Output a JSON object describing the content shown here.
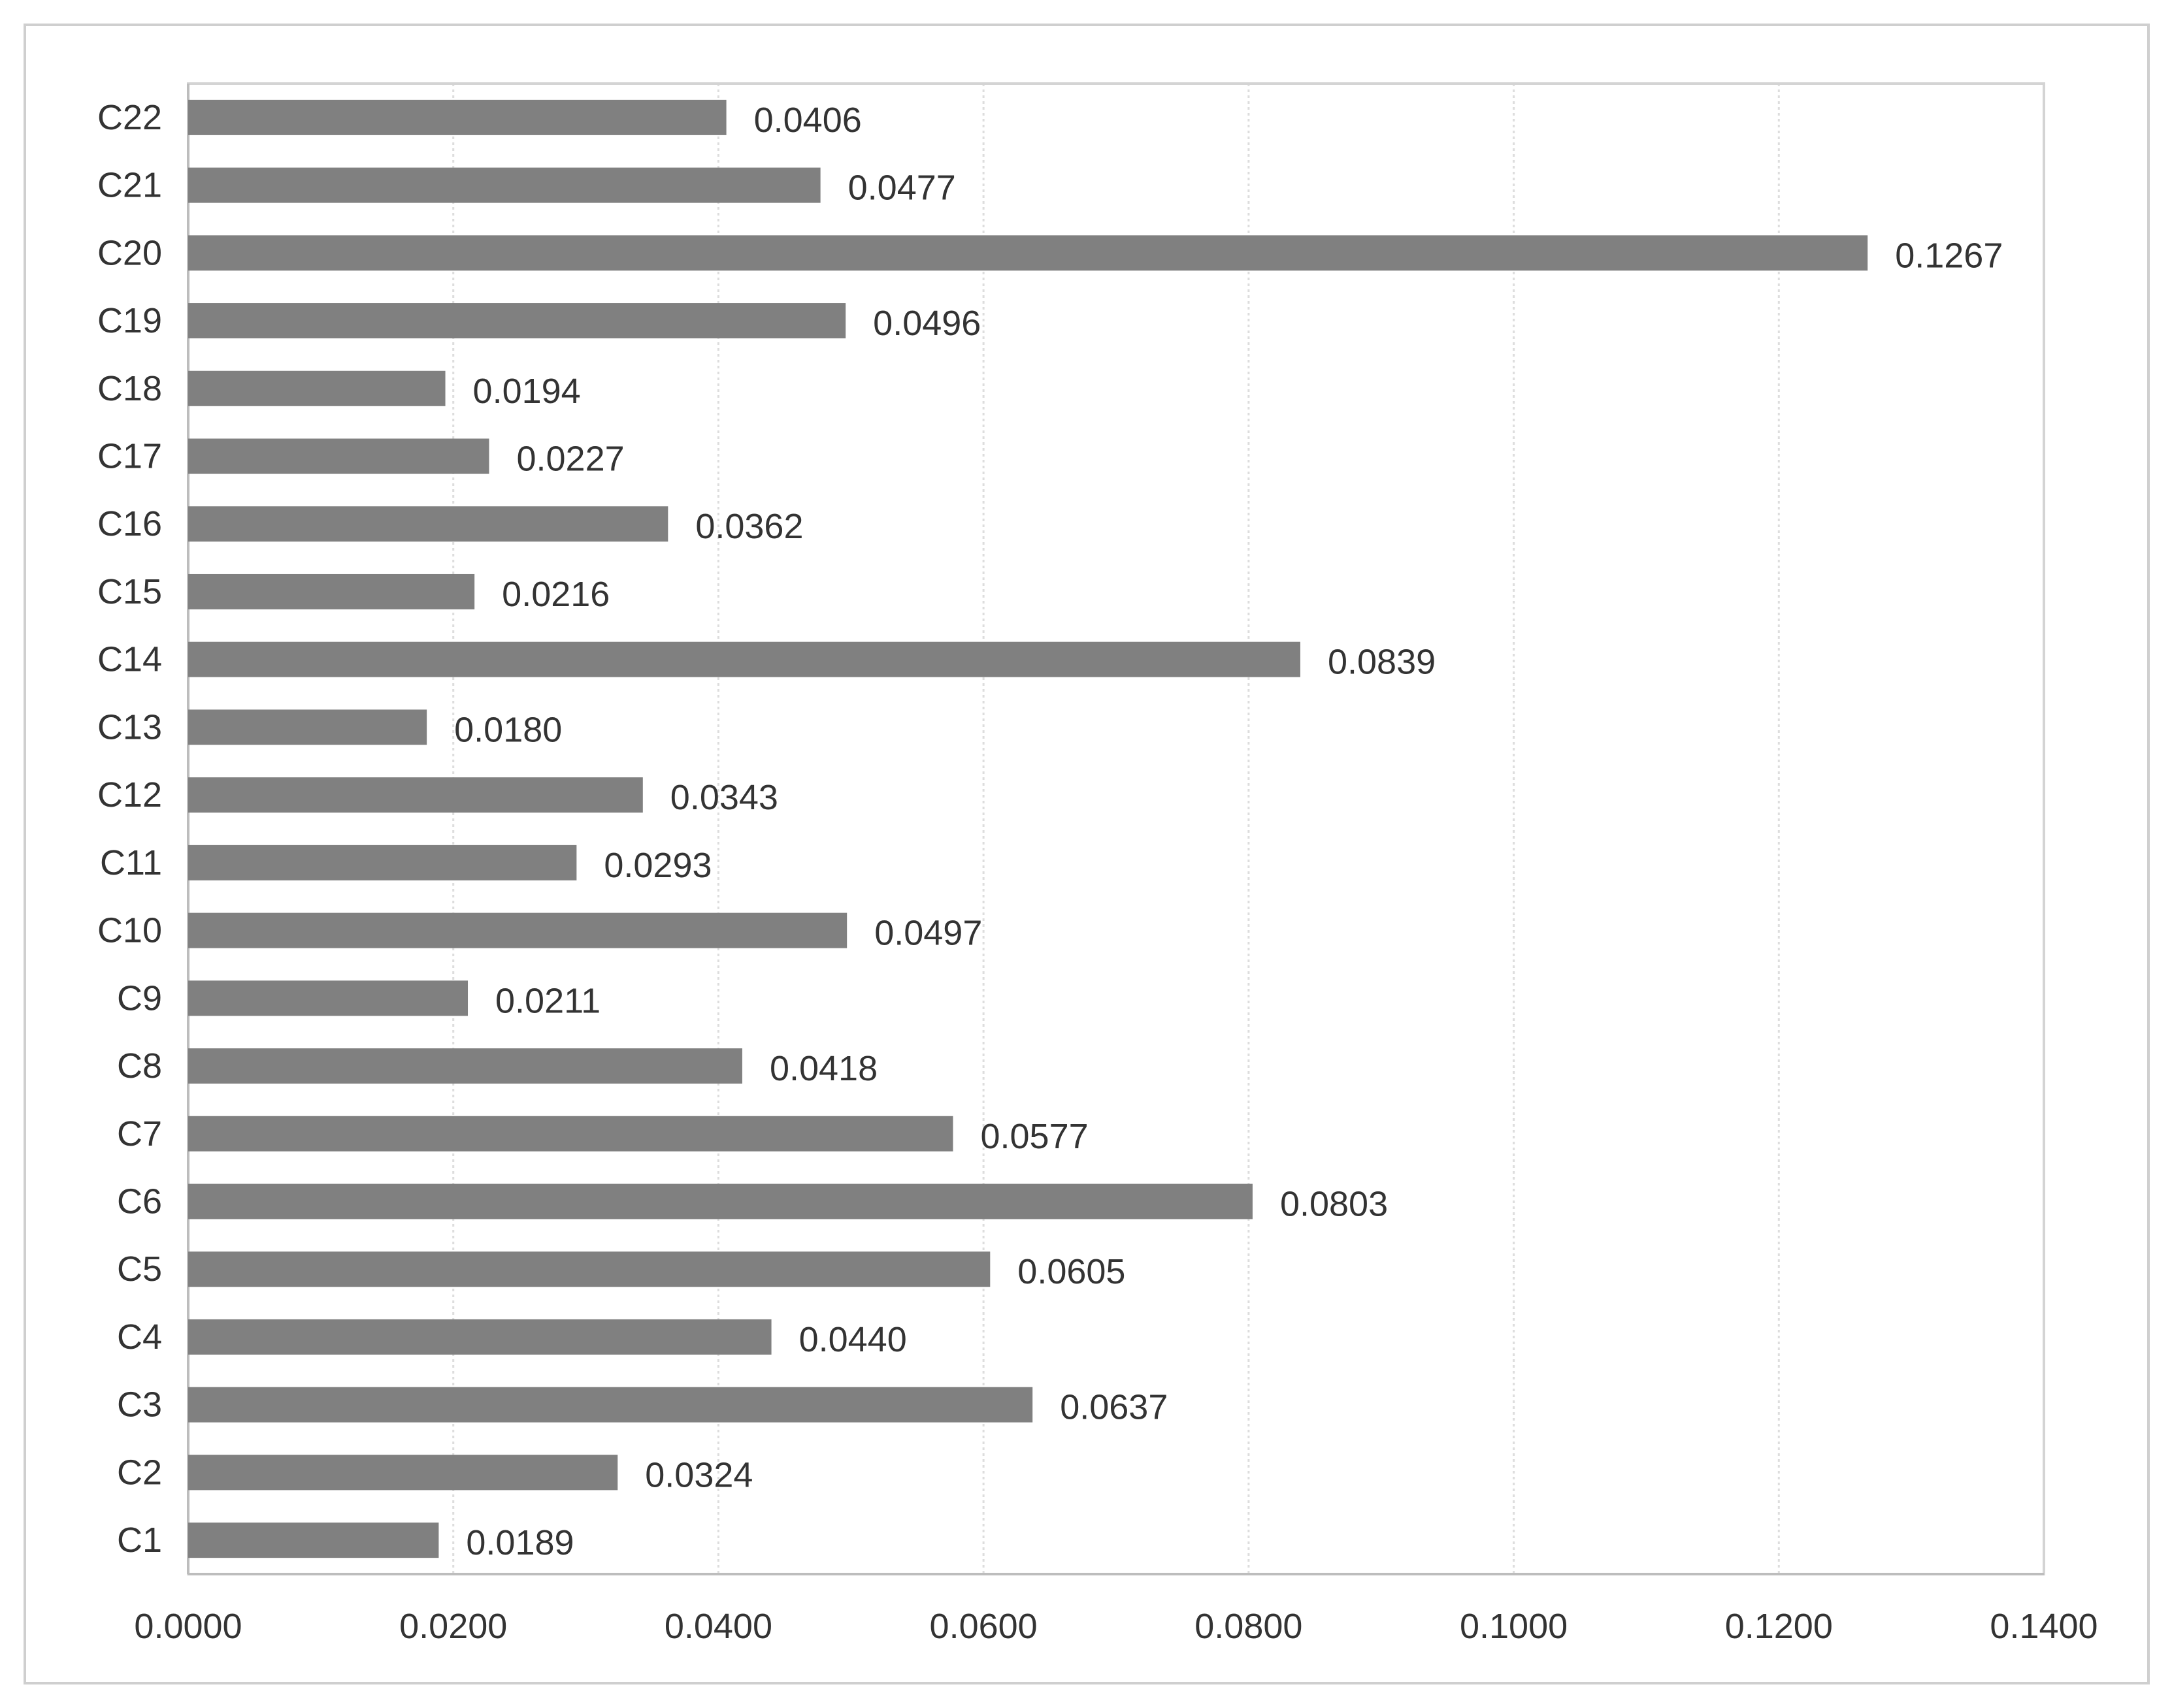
{
  "chart_data": {
    "type": "bar",
    "orientation": "horizontal",
    "title": "",
    "xlabel": "",
    "ylabel": "",
    "categories": [
      "C1",
      "C2",
      "C3",
      "C4",
      "C5",
      "C6",
      "C7",
      "C8",
      "C9",
      "C10",
      "C11",
      "C12",
      "C13",
      "C14",
      "C15",
      "C16",
      "C17",
      "C18",
      "C19",
      "C20",
      "C21",
      "C22"
    ],
    "values": [
      0.0189,
      0.0324,
      0.0637,
      0.044,
      0.0605,
      0.0803,
      0.0577,
      0.0418,
      0.0211,
      0.0497,
      0.0293,
      0.0343,
      0.018,
      0.0839,
      0.0216,
      0.0362,
      0.0227,
      0.0194,
      0.0496,
      0.1267,
      0.0477,
      0.0406
    ],
    "data_labels": [
      "0.0189",
      "0.0324",
      "0.0637",
      "0.0440",
      "0.0605",
      "0.0803",
      "0.0577",
      "0.0418",
      "0.0211",
      "0.0497",
      "0.0293",
      "0.0343",
      "0.0180",
      "0.0839",
      "0.0216",
      "0.0362",
      "0.0227",
      "0.0194",
      "0.0496",
      "0.1267",
      "0.0477",
      "0.0406"
    ],
    "x_ticks": [
      "0.0000",
      "0.0200",
      "0.0400",
      "0.0600",
      "0.0800",
      "0.1000",
      "0.1200",
      "0.1400"
    ],
    "xlim": [
      0,
      0.14
    ],
    "grid": "vertical dotted",
    "legend": "none",
    "bar_color": "#808080",
    "grid_color": "#dddddd",
    "axis_color": "#bdbdbd",
    "text_color": "#333333"
  }
}
